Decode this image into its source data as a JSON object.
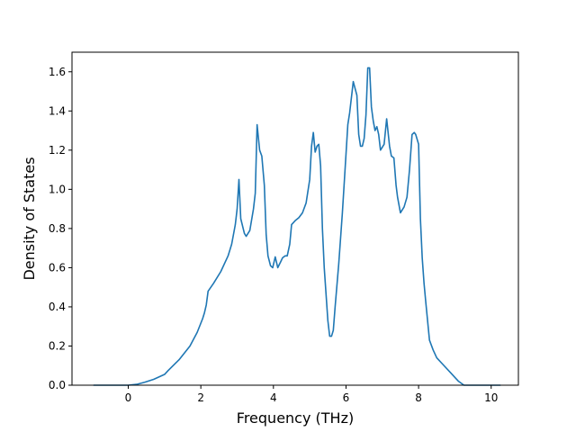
{
  "chart_data": {
    "type": "line",
    "title": "",
    "xlabel": "Frequency (THz)",
    "ylabel": "Density of States",
    "xlim": [
      -1.55,
      10.75
    ],
    "ylim": [
      0.0,
      1.7
    ],
    "xticks": [
      0,
      2,
      4,
      6,
      8,
      10
    ],
    "yticks": [
      0.0,
      0.2,
      0.4,
      0.6,
      0.8,
      1.0,
      1.2,
      1.4,
      1.6
    ],
    "xtick_labels": [
      "0",
      "2",
      "4",
      "6",
      "8",
      "10"
    ],
    "ytick_labels": [
      "0.0",
      "0.2",
      "0.4",
      "0.6",
      "0.8",
      "1.0",
      "1.2",
      "1.4",
      "1.6"
    ],
    "grid": false,
    "legend": false,
    "line_color": "#1f77b4",
    "series": [
      {
        "x": [
          -0.95,
          -0.5,
          0.0,
          0.25,
          0.45,
          0.7,
          1.0,
          1.1,
          1.4,
          1.7,
          1.9,
          2.05,
          2.1,
          2.15,
          2.2,
          2.35,
          2.55,
          2.75,
          2.85,
          2.95,
          3.0,
          3.05,
          3.1,
          3.2,
          3.25,
          3.35,
          3.45,
          3.5,
          3.55,
          3.62,
          3.68,
          3.75,
          3.8,
          3.85,
          3.92,
          3.98,
          4.05,
          4.12,
          4.2,
          4.25,
          4.32,
          4.38,
          4.45,
          4.5,
          4.6,
          4.7,
          4.8,
          4.9,
          5.0,
          5.05,
          5.1,
          5.15,
          5.2,
          5.25,
          5.3,
          5.35,
          5.4,
          5.5,
          5.55,
          5.6,
          5.65,
          5.7,
          5.8,
          5.9,
          6.0,
          6.05,
          6.1,
          6.2,
          6.3,
          6.35,
          6.4,
          6.45,
          6.5,
          6.55,
          6.6,
          6.65,
          6.7,
          6.75,
          6.8,
          6.85,
          6.9,
          6.95,
          7.05,
          7.12,
          7.2,
          7.25,
          7.32,
          7.38,
          7.42,
          7.5,
          7.6,
          7.68,
          7.75,
          7.82,
          7.88,
          7.92,
          8.0,
          8.05,
          8.1,
          8.15,
          8.2,
          8.3,
          8.4,
          8.5,
          8.7,
          8.9,
          9.1,
          9.25,
          9.3,
          9.6,
          10.0,
          10.25
        ],
        "y": [
          0.0,
          0.0,
          0.0,
          0.005,
          0.015,
          0.03,
          0.055,
          0.075,
          0.13,
          0.2,
          0.27,
          0.34,
          0.37,
          0.41,
          0.48,
          0.52,
          0.58,
          0.66,
          0.72,
          0.82,
          0.9,
          1.05,
          0.85,
          0.775,
          0.76,
          0.79,
          0.9,
          0.98,
          1.33,
          1.2,
          1.17,
          1.02,
          0.77,
          0.66,
          0.61,
          0.6,
          0.655,
          0.6,
          0.63,
          0.65,
          0.66,
          0.66,
          0.72,
          0.82,
          0.84,
          0.855,
          0.88,
          0.93,
          1.05,
          1.22,
          1.29,
          1.19,
          1.22,
          1.23,
          1.12,
          0.8,
          0.6,
          0.33,
          0.25,
          0.25,
          0.28,
          0.4,
          0.62,
          0.88,
          1.18,
          1.33,
          1.39,
          1.55,
          1.48,
          1.28,
          1.22,
          1.22,
          1.26,
          1.38,
          1.62,
          1.62,
          1.42,
          1.35,
          1.3,
          1.32,
          1.28,
          1.2,
          1.23,
          1.36,
          1.22,
          1.17,
          1.16,
          1.02,
          0.96,
          0.88,
          0.91,
          0.96,
          1.1,
          1.28,
          1.29,
          1.28,
          1.23,
          0.85,
          0.65,
          0.52,
          0.42,
          0.23,
          0.18,
          0.14,
          0.1,
          0.06,
          0.02,
          0.0,
          0.0,
          0.0,
          0.0,
          0.0
        ]
      }
    ]
  }
}
